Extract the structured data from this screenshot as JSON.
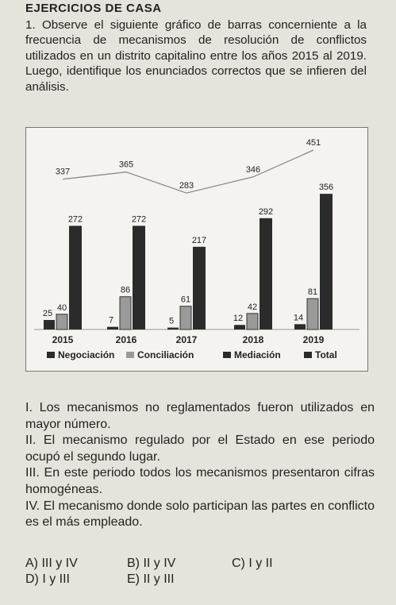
{
  "heading": "EJERCICIOS DE CASA",
  "intro": "1. Observe el siguiente gráfico de barras concerniente a la frecuencia de mecanismos de resolución de conflictos utilizados en un distrito capitalino entre los años 2015 al 2019. Luego, identifique los enunciados correctos que se infieren del análisis.",
  "chart_data": {
    "type": "bar",
    "categories": [
      "2015",
      "2016",
      "2017",
      "2018",
      "2019"
    ],
    "series": [
      {
        "name": "Negociación",
        "values": [
          25,
          7,
          5,
          12,
          14
        ],
        "color": "#2b2b2b"
      },
      {
        "name": "Conciliación",
        "values": [
          40,
          86,
          61,
          42,
          81
        ],
        "color": "#8a8a8a"
      },
      {
        "name": "Mediación",
        "values": [
          272,
          272,
          217,
          292,
          356
        ],
        "color": "#2b2b2b"
      }
    ],
    "total_line": {
      "name": "Total",
      "values": [
        337,
        365,
        283,
        346,
        451
      ],
      "color": "#8a8a8a"
    },
    "legend": [
      "Negociación",
      "Conciliación",
      "Mediación",
      "Total"
    ],
    "legend_position": "bottom",
    "grid": false
  },
  "statements": [
    "I. Los mecanismos no reglamentados fueron utilizados en mayor número.",
    "II. El mecanismo regulado por el Estado en ese periodo ocupó el segundo lugar.",
    "III. En este periodo todos los mecanismos presentaron cifras homogéneas.",
    "IV. El mecanismo donde solo participan las partes en conflicto es el más empleado."
  ],
  "options": [
    "A) III y IV",
    "B) II y IV",
    "C) I y II",
    "D) I y III",
    "E) II y III"
  ]
}
